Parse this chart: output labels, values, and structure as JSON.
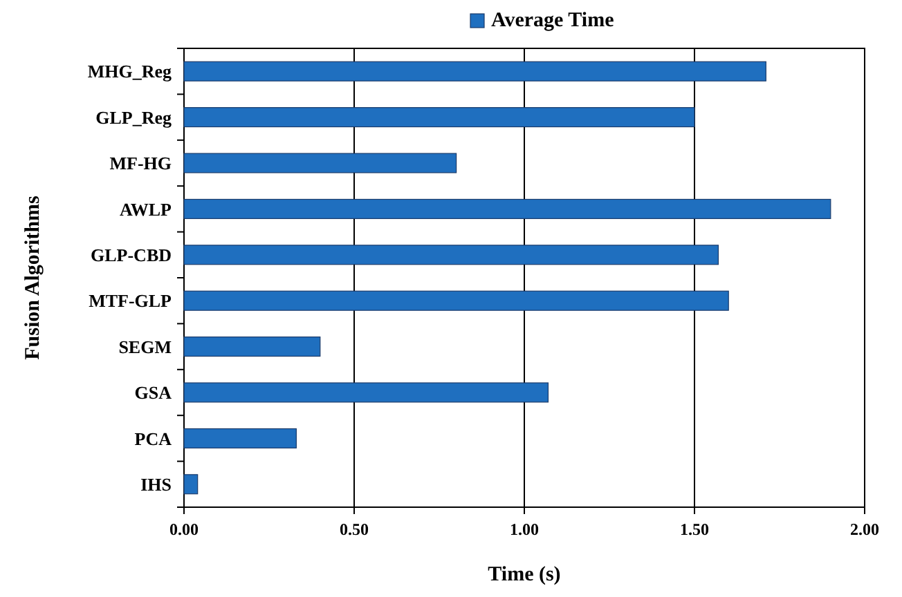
{
  "chart_data": {
    "type": "bar",
    "orientation": "horizontal",
    "xlabel": "Time (s)",
    "ylabel": "Fusion Algorithms",
    "categories": [
      "MHG_Reg",
      "GLP_Reg",
      "MF-HG",
      "AWLP",
      "GLP-CBD",
      "MTF-GLP",
      "SEGM",
      "GSA",
      "PCA",
      "IHS"
    ],
    "series": [
      {
        "name": "Average Time",
        "color": "#1f6fbf",
        "values": [
          1.71,
          1.5,
          0.8,
          1.9,
          1.57,
          1.6,
          0.4,
          1.07,
          0.33,
          0.04
        ]
      }
    ],
    "xlim": [
      0,
      2
    ],
    "xticks": [
      {
        "value": 0,
        "label": "0.00"
      },
      {
        "value": 0.5,
        "label": "0.50"
      },
      {
        "value": 1,
        "label": "1.00"
      },
      {
        "value": 1.5,
        "label": "1.50"
      },
      {
        "value": 2,
        "label": "2.00"
      }
    ],
    "grid": "x",
    "legend": "top"
  }
}
